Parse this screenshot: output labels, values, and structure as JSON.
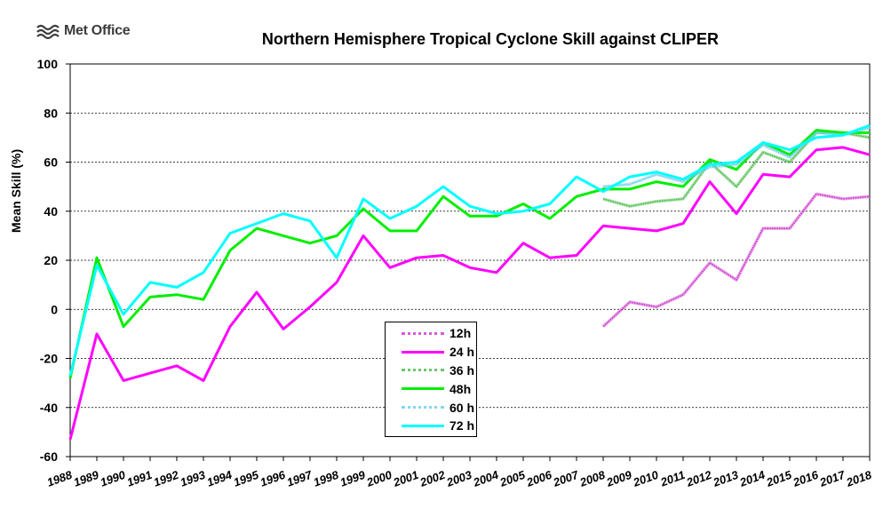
{
  "logo": {
    "text": "Met Office",
    "icon": "met-office-waves-icon"
  },
  "chart_data": {
    "type": "line",
    "title": "Northern Hemisphere Tropical Cyclone Skill against CLIPER",
    "xlabel": "",
    "ylabel": "Mean Skill (%)",
    "ylim": [
      -60,
      100
    ],
    "yticks": [
      -60,
      -40,
      -20,
      0,
      20,
      40,
      60,
      80,
      100
    ],
    "grid": "horizontal-dashed",
    "legend_placement": "bottom-center",
    "x": [
      "1988",
      "1989",
      "1990",
      "1991",
      "1992",
      "1993",
      "1994",
      "1995",
      "1996",
      "1997",
      "1998",
      "1999",
      "2000",
      "2001",
      "2002",
      "2003",
      "2004",
      "2005",
      "2006",
      "2007",
      "2008",
      "2009",
      "2010",
      "2011",
      "2012",
      "2013",
      "2014",
      "2015",
      "2016",
      "2017",
      "2018"
    ],
    "series": [
      {
        "name": "12h",
        "color": "#cc33cc",
        "style": "thin-hatched",
        "values": [
          null,
          null,
          null,
          null,
          null,
          null,
          null,
          null,
          null,
          null,
          null,
          null,
          null,
          null,
          null,
          null,
          null,
          null,
          null,
          null,
          -7,
          3,
          1,
          6,
          19,
          12,
          33,
          33,
          47,
          45,
          46
        ]
      },
      {
        "name": "24 h",
        "color": "#ff00ff",
        "style": "thick",
        "values": [
          -53,
          -10,
          -29,
          -26,
          -23,
          -29,
          -7,
          7,
          -8,
          1,
          11,
          30,
          17,
          21,
          22,
          17,
          15,
          27,
          21,
          22,
          34,
          33,
          32,
          35,
          52,
          39,
          55,
          54,
          65,
          66,
          63
        ]
      },
      {
        "name": "36 h",
        "color": "#44bb44",
        "style": "thin-hatched",
        "values": [
          null,
          null,
          null,
          null,
          null,
          null,
          null,
          null,
          null,
          null,
          null,
          null,
          null,
          null,
          null,
          null,
          null,
          null,
          null,
          null,
          45,
          42,
          44,
          45,
          60,
          50,
          64,
          60,
          72,
          72,
          70
        ]
      },
      {
        "name": "48h",
        "color": "#00ee00",
        "style": "thick",
        "values": [
          -28,
          21,
          -7,
          5,
          6,
          4,
          24,
          33,
          30,
          27,
          30,
          41,
          32,
          32,
          46,
          38,
          38,
          43,
          37,
          46,
          49,
          49,
          52,
          50,
          61,
          57,
          68,
          63,
          73,
          72,
          72
        ]
      },
      {
        "name": "60 h",
        "color": "#66ccee",
        "style": "thin-hatched",
        "values": [
          null,
          null,
          null,
          null,
          null,
          null,
          null,
          null,
          null,
          null,
          null,
          null,
          null,
          null,
          null,
          null,
          null,
          null,
          null,
          null,
          50,
          51,
          55,
          52,
          58,
          59,
          67,
          62,
          72,
          71,
          74
        ]
      },
      {
        "name": "72 h",
        "color": "#00ffff",
        "style": "thick",
        "values": [
          -27,
          18,
          -2,
          11,
          9,
          15,
          31,
          35,
          39,
          36,
          21,
          45,
          37,
          42,
          50,
          42,
          39,
          40,
          43,
          54,
          48,
          54,
          56,
          53,
          59,
          60,
          68,
          65,
          70,
          71,
          75
        ]
      }
    ]
  }
}
